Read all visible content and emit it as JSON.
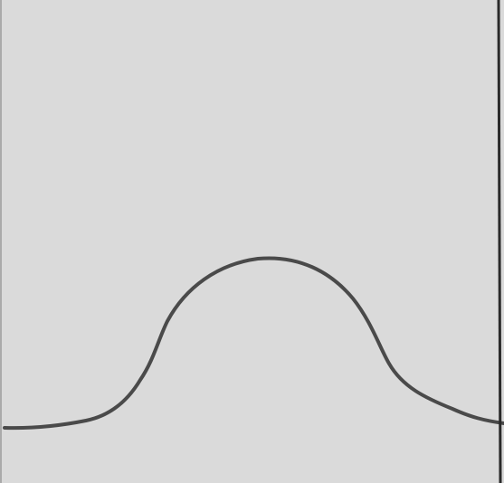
{
  "drawing": {
    "subject": "hand-drawn-bell-curve",
    "colors": {
      "paper": "#dadada",
      "stroke": "#4a4a4a",
      "edge": "#2a2a2a"
    }
  }
}
